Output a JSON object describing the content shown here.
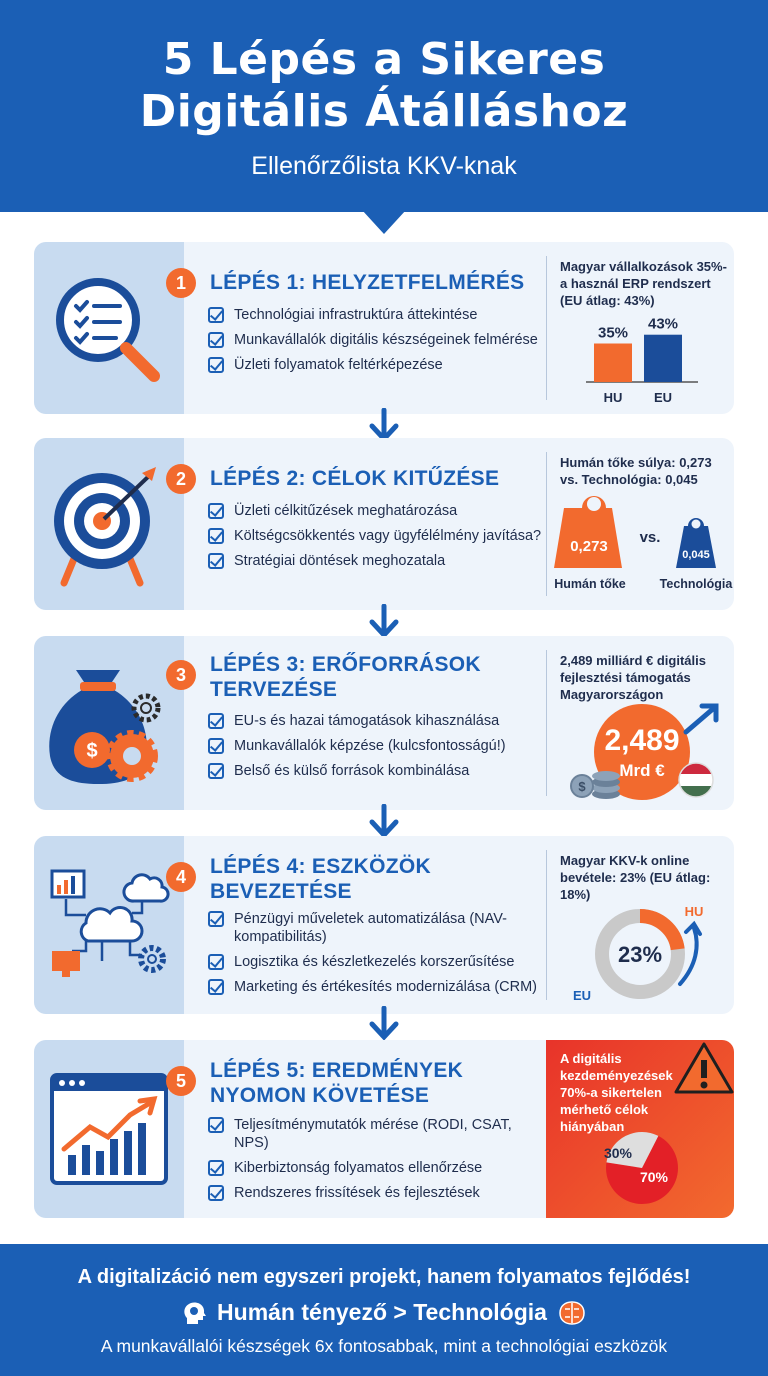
{
  "header": {
    "title_line1": "5 Lépés a Sikeres",
    "title_line2": "Digitális Átálláshoz",
    "subtitle": "Ellenőrzőlista KKV-knak"
  },
  "steps": [
    {
      "number": "1",
      "title": "LÉPÉS 1: HELYZETFELMÉRÉS",
      "icon": "magnifier-checklist-icon",
      "items": [
        "Technológiai infrastruktúra áttekintése",
        "Munkavállalók digitális készségeinek felmérése",
        "Üzleti folyamatok feltérképezése"
      ],
      "stat": {
        "text": "Magyar vállalkozások 35%-a használ ERP rendszert (EU átlag: 43%)",
        "hu_value_label": "35%",
        "eu_value_label": "43%",
        "hu_value": 35,
        "eu_value": 43,
        "hu_label": "HU",
        "eu_label": "EU"
      }
    },
    {
      "number": "2",
      "title": "LÉPÉS 2: CÉLOK KITŰZÉSE",
      "icon": "target-arrow-icon",
      "items": [
        "Üzleti célkitűzések meghatározása",
        "Költségcsökkentés vagy ügyfélélmény javítása?",
        "Stratégiai döntések meghozatala"
      ],
      "stat": {
        "text": "Humán tőke súlya: 0,273 vs. Technológia: 0,045",
        "big_weight": "0,273",
        "small_weight": "0,045",
        "vs": "vs.",
        "big_label": "Humán tőke",
        "small_label": "Technológia"
      }
    },
    {
      "number": "3",
      "title": "LÉPÉS 3: ERŐFORRÁSOK TERVEZÉSE",
      "icon": "money-bag-gears-icon",
      "items": [
        "EU-s és hazai támogatások kihasználása",
        "Munkavállalók képzése (kulcsfontosságú!)",
        "Belső és külső források kombinálása"
      ],
      "stat": {
        "text": "2,489 milliárd € digitális fejlesztési támogatás Magyarországon",
        "amount": "2,489",
        "unit": "Mrd €"
      }
    },
    {
      "number": "4",
      "title": "LÉPÉS 4: ESZKÖZÖK BEVEZETÉSE",
      "icon": "cloud-network-icon",
      "items": [
        "Pénzügyi műveletek automatizálása (NAV-kompatibilitás)",
        "Logisztika és készletkezelés korszerűsítése",
        "Marketing és értékesítés modernizálása (CRM)"
      ],
      "stat": {
        "text": "Magyar KKV-k online bevétele: 23% (EU átlag: 18%)",
        "center": "23%",
        "hu_label": "HU",
        "eu_label": "EU",
        "hu_value": 23,
        "eu_value": 18
      }
    },
    {
      "number": "5",
      "title": "LÉPÉS 5: EREDMÉNYEK NYOMON KÖVETÉSE",
      "icon": "dashboard-chart-icon",
      "items": [
        "Teljesítménymutatók mérése (RODI, CSAT, NPS)",
        "Kiberbiztonság folyamatos ellenőrzése",
        "Rendszeres frissítések és fejlesztések"
      ],
      "stat": {
        "text": "A digitális kezdeményezések 70%-a sikertelen mérhető célok hiányában",
        "slice_small": "30%",
        "slice_big": "70%",
        "small_value": 30,
        "big_value": 70
      }
    }
  ],
  "footer": {
    "line1": "A digitalizáció nem egyszeri projekt, hanem folyamatos fejlődés!",
    "line2": "Humán tényező > Technológia",
    "line3": "A munkavállalói készségek 6x fontosabbak, mint a technológiai eszközök"
  },
  "colors": {
    "primary": "#1b5fb5",
    "accent": "#f26a2e",
    "card": "#eef4fb",
    "icon_panel": "#c8dbf0",
    "alert": "#e8332a"
  }
}
